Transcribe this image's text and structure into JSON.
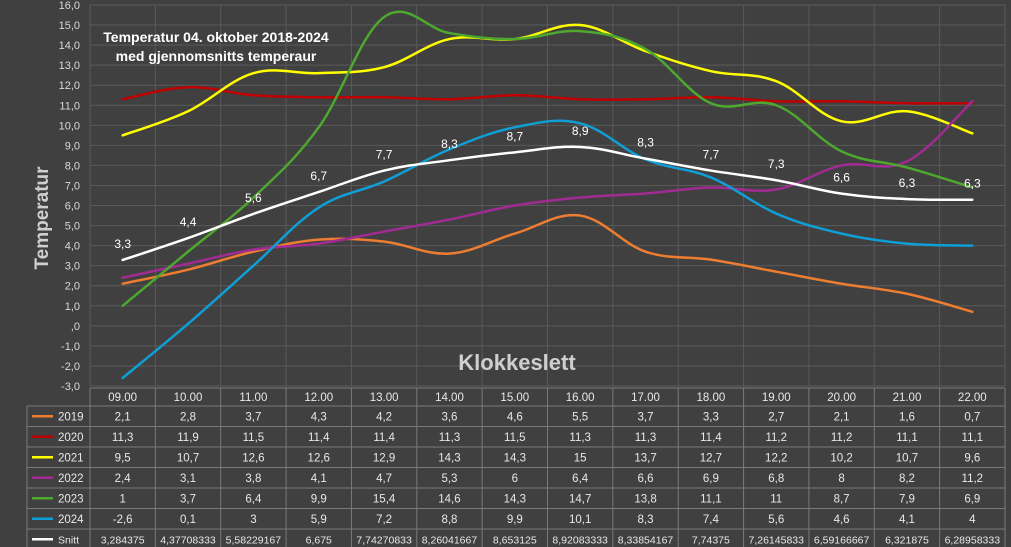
{
  "chart_data": {
    "type": "line",
    "title": "Temperatur 04. oktober 2018-2024",
    "subtitle": "med gjennomsnitts temperaur",
    "xlabel": "Klokkeslett",
    "ylabel": "Temperatur",
    "ylim": [
      -3.0,
      16.0
    ],
    "ytick_step": 1.0,
    "ytick_labels": [
      "-3,0",
      "-2,0",
      "-1,0",
      ",0",
      "1,0",
      "2,0",
      "3,0",
      "4,0",
      "5,0",
      "6,0",
      "7,0",
      "8,0",
      "9,0",
      "10,0",
      "11,0",
      "12,0",
      "13,0",
      "14,0",
      "15,0",
      "16,0"
    ],
    "grid": true,
    "legend": "data-table",
    "categories": [
      "09.00",
      "10.00",
      "11.00",
      "12.00",
      "13.00",
      "14.00",
      "15.00",
      "16.00",
      "17.00",
      "18.00",
      "19.00",
      "20.00",
      "21.00",
      "22.00"
    ],
    "series": [
      {
        "name": "2019",
        "color": "#ed7d31",
        "values": [
          2.1,
          2.8,
          3.7,
          4.3,
          4.2,
          3.6,
          4.6,
          5.5,
          3.7,
          3.3,
          2.7,
          2.1,
          1.6,
          0.7
        ],
        "table": [
          "2,1",
          "2,8",
          "3,7",
          "4,3",
          "4,2",
          "3,6",
          "4,6",
          "5,5",
          "3,7",
          "3,3",
          "2,7",
          "2,1",
          "1,6",
          "0,7"
        ]
      },
      {
        "name": "2020",
        "color": "#c00000",
        "values": [
          11.3,
          11.9,
          11.5,
          11.4,
          11.4,
          11.3,
          11.5,
          11.3,
          11.3,
          11.4,
          11.2,
          11.2,
          11.1,
          11.1
        ],
        "table": [
          "11,3",
          "11,9",
          "11,5",
          "11,4",
          "11,4",
          "11,3",
          "11,5",
          "11,3",
          "11,3",
          "11,4",
          "11,2",
          "11,2",
          "11,1",
          "11,1"
        ]
      },
      {
        "name": "2021",
        "color": "#ffff00",
        "values": [
          9.5,
          10.7,
          12.6,
          12.6,
          12.9,
          14.3,
          14.3,
          15,
          13.7,
          12.7,
          12.2,
          10.2,
          10.7,
          9.6
        ],
        "table": [
          "9,5",
          "10,7",
          "12,6",
          "12,6",
          "12,9",
          "14,3",
          "14,3",
          "15",
          "13,7",
          "12,7",
          "12,2",
          "10,2",
          "10,7",
          "9,6"
        ]
      },
      {
        "name": "2022",
        "color": "#a02b93",
        "values": [
          2.4,
          3.1,
          3.8,
          4.1,
          4.7,
          5.3,
          6,
          6.4,
          6.6,
          6.9,
          6.8,
          8,
          8.2,
          11.2
        ],
        "table": [
          "2,4",
          "3,1",
          "3,8",
          "4,1",
          "4,7",
          "5,3",
          "6",
          "6,4",
          "6,6",
          "6,9",
          "6,8",
          "8",
          "8,2",
          "11,2"
        ]
      },
      {
        "name": "2023",
        "color": "#4ea72e",
        "values": [
          1,
          3.7,
          6.4,
          9.9,
          15.4,
          14.6,
          14.3,
          14.7,
          13.8,
          11.1,
          11,
          8.7,
          7.9,
          6.9
        ],
        "table": [
          "1",
          "3,7",
          "6,4",
          "9,9",
          "15,4",
          "14,6",
          "14,3",
          "14,7",
          "13,8",
          "11,1",
          "11",
          "8,7",
          "7,9",
          "6,9"
        ]
      },
      {
        "name": "2024",
        "color": "#0f9ed5",
        "values": [
          -2.6,
          0.1,
          3,
          5.9,
          7.2,
          8.8,
          9.9,
          10.1,
          8.3,
          7.4,
          5.6,
          4.6,
          4.1,
          4
        ],
        "table": [
          "-2,6",
          "0,1",
          "3",
          "5,9",
          "7,2",
          "8,8",
          "9,9",
          "10,1",
          "8,3",
          "7,4",
          "5,6",
          "4,6",
          "4,1",
          "4"
        ]
      },
      {
        "name": "Snitt",
        "color": "#ffffff",
        "values": [
          3.284375,
          4.37708333,
          5.58229167,
          6.675,
          7.74270833,
          8.26041667,
          8.653125,
          8.92083333,
          8.33854167,
          7.74375,
          7.26145833,
          6.59166667,
          6.321875,
          6.28958333
        ],
        "table": [
          "3,284375",
          "4,37708333",
          "5,58229167",
          "6,675",
          "7,74270833",
          "8,26041667",
          "8,653125",
          "8,92083333",
          "8,33854167",
          "7,74375",
          "7,26145833",
          "6,59166667",
          "6,321875",
          "6,28958333"
        ],
        "data_labels": [
          "3,3",
          "4,4",
          "5,6",
          "6,7",
          "7,7",
          "8,3",
          "8,7",
          "8,9",
          "8,3",
          "7,7",
          "7,3",
          "6,6",
          "6,3",
          "6,3"
        ]
      }
    ]
  }
}
